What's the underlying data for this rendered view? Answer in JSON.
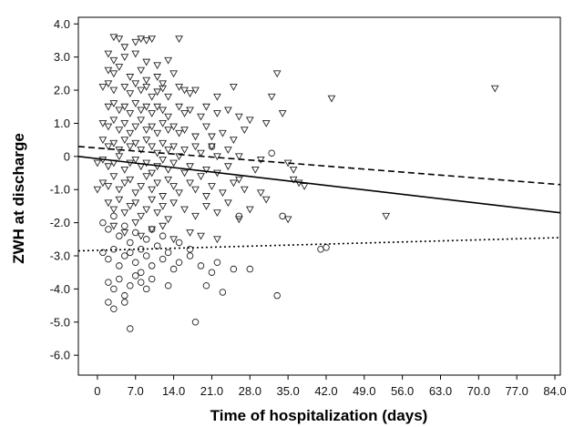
{
  "chart_data": {
    "type": "scatter",
    "title": "",
    "xlabel": "Time of hospitalization (days)",
    "ylabel": "ZWH at discharge",
    "xlim": [
      -3.5,
      85
    ],
    "ylim": [
      -6.6,
      4.2
    ],
    "x_ticks": [
      "0",
      "7.0",
      "14.0",
      "21.0",
      "28.0",
      "35.0",
      "42.0",
      "49.0",
      "56.0",
      "63.0",
      "70.0",
      "77.0",
      "84.0"
    ],
    "y_ticks": [
      "4.0",
      "3.0",
      "2.0",
      "1.0",
      "0",
      "-1.0",
      "-2.0",
      "-3.0",
      "-4.0",
      "-5.0",
      "-6.0"
    ],
    "grid": false,
    "legend": "none",
    "series": [
      {
        "marker": "triangle-down",
        "points": [
          [
            3,
            3.6
          ],
          [
            4,
            3.55
          ],
          [
            5,
            3.3
          ],
          [
            7,
            3.45
          ],
          [
            8,
            3.55
          ],
          [
            9,
            3.5
          ],
          [
            10,
            3.55
          ],
          [
            15,
            3.55
          ],
          [
            2,
            3.1
          ],
          [
            3,
            2.9
          ],
          [
            5,
            3.0
          ],
          [
            7,
            3.1
          ],
          [
            9,
            2.85
          ],
          [
            11,
            2.75
          ],
          [
            13,
            2.9
          ],
          [
            33,
            2.5
          ],
          [
            73,
            2.05
          ],
          [
            2,
            2.6
          ],
          [
            3,
            2.5
          ],
          [
            4,
            2.7
          ],
          [
            6,
            2.4
          ],
          [
            8,
            2.6
          ],
          [
            9,
            2.3
          ],
          [
            11,
            2.4
          ],
          [
            12,
            2.2
          ],
          [
            14,
            2.5
          ],
          [
            1,
            2.1
          ],
          [
            2,
            2.2
          ],
          [
            3,
            2.0
          ],
          [
            5,
            2.1
          ],
          [
            6,
            1.9
          ],
          [
            7,
            2.2
          ],
          [
            8,
            2.0
          ],
          [
            9,
            2.1
          ],
          [
            10,
            1.8
          ],
          [
            11,
            1.95
          ],
          [
            12,
            2.05
          ],
          [
            13,
            1.8
          ],
          [
            15,
            2.1
          ],
          [
            16,
            2.0
          ],
          [
            17,
            1.9
          ],
          [
            18,
            2.0
          ],
          [
            22,
            1.8
          ],
          [
            25,
            2.1
          ],
          [
            32,
            1.8
          ],
          [
            43,
            1.75
          ],
          [
            2,
            1.5
          ],
          [
            3,
            1.6
          ],
          [
            4,
            1.4
          ],
          [
            5,
            1.5
          ],
          [
            6,
            1.3
          ],
          [
            7,
            1.6
          ],
          [
            8,
            1.4
          ],
          [
            9,
            1.5
          ],
          [
            10,
            1.3
          ],
          [
            11,
            1.5
          ],
          [
            12,
            1.4
          ],
          [
            13,
            1.2
          ],
          [
            15,
            1.5
          ],
          [
            16,
            1.3
          ],
          [
            17,
            1.4
          ],
          [
            19,
            1.2
          ],
          [
            20,
            1.5
          ],
          [
            22,
            1.3
          ],
          [
            24,
            1.4
          ],
          [
            26,
            1.2
          ],
          [
            28,
            1.1
          ],
          [
            31,
            1.0
          ],
          [
            34,
            1.3
          ],
          [
            1,
            1.0
          ],
          [
            2,
            0.9
          ],
          [
            3,
            1.1
          ],
          [
            4,
            0.8
          ],
          [
            5,
            1.0
          ],
          [
            6,
            0.7
          ],
          [
            7,
            0.9
          ],
          [
            8,
            1.1
          ],
          [
            9,
            0.8
          ],
          [
            10,
            0.9
          ],
          [
            11,
            0.7
          ],
          [
            12,
            1.0
          ],
          [
            13,
            0.8
          ],
          [
            14,
            0.9
          ],
          [
            15,
            0.7
          ],
          [
            16,
            0.8
          ],
          [
            18,
            0.6
          ],
          [
            20,
            0.9
          ],
          [
            21,
            0.6
          ],
          [
            23,
            0.7
          ],
          [
            25,
            0.5
          ],
          [
            27,
            0.8
          ],
          [
            1,
            0.5
          ],
          [
            2,
            0.3
          ],
          [
            3,
            0.4
          ],
          [
            4,
            0.2
          ],
          [
            5,
            0.5
          ],
          [
            6,
            0.3
          ],
          [
            7,
            0.4
          ],
          [
            8,
            0.2
          ],
          [
            9,
            0.5
          ],
          [
            10,
            0.3
          ],
          [
            11,
            0.1
          ],
          [
            12,
            0.4
          ],
          [
            13,
            0.2
          ],
          [
            14,
            0.3
          ],
          [
            15,
            0.0
          ],
          [
            16,
            0.2
          ],
          [
            18,
            0.3
          ],
          [
            19,
            0.1
          ],
          [
            21,
            0.3
          ],
          [
            22,
            0.0
          ],
          [
            24,
            0.2
          ],
          [
            26,
            0.0
          ],
          [
            30,
            -0.1
          ],
          [
            0,
            -0.2
          ],
          [
            1,
            -0.1
          ],
          [
            2,
            -0.3
          ],
          [
            3,
            -0.2
          ],
          [
            4,
            0.0
          ],
          [
            5,
            -0.4
          ],
          [
            6,
            -0.2
          ],
          [
            7,
            -0.1
          ],
          [
            8,
            -0.3
          ],
          [
            9,
            -0.2
          ],
          [
            10,
            -0.5
          ],
          [
            11,
            -0.3
          ],
          [
            12,
            -0.1
          ],
          [
            13,
            -0.4
          ],
          [
            14,
            -0.2
          ],
          [
            16,
            -0.5
          ],
          [
            17,
            -0.3
          ],
          [
            19,
            -0.6
          ],
          [
            20,
            -0.4
          ],
          [
            22,
            -0.5
          ],
          [
            24,
            -0.3
          ],
          [
            26,
            -0.7
          ],
          [
            29,
            -0.4
          ],
          [
            35,
            -0.2
          ],
          [
            36,
            -0.4
          ],
          [
            0,
            -1.0
          ],
          [
            1,
            -0.8
          ],
          [
            2,
            -0.9
          ],
          [
            3,
            -0.6
          ],
          [
            4,
            -1.0
          ],
          [
            5,
            -0.8
          ],
          [
            6,
            -0.7
          ],
          [
            7,
            -1.1
          ],
          [
            8,
            -0.9
          ],
          [
            9,
            -0.6
          ],
          [
            10,
            -1.0
          ],
          [
            11,
            -0.8
          ],
          [
            12,
            -1.2
          ],
          [
            13,
            -0.7
          ],
          [
            14,
            -0.9
          ],
          [
            15,
            -1.1
          ],
          [
            17,
            -0.8
          ],
          [
            18,
            -1.0
          ],
          [
            20,
            -1.2
          ],
          [
            21,
            -0.9
          ],
          [
            23,
            -1.1
          ],
          [
            25,
            -0.8
          ],
          [
            27,
            -1.0
          ],
          [
            30,
            -1.1
          ],
          [
            36,
            -0.7
          ],
          [
            37,
            -0.8
          ],
          [
            38,
            -0.9
          ],
          [
            2,
            -1.4
          ],
          [
            3,
            -1.6
          ],
          [
            4,
            -1.3
          ],
          [
            5,
            -1.7
          ],
          [
            6,
            -1.5
          ],
          [
            7,
            -1.4
          ],
          [
            8,
            -1.8
          ],
          [
            9,
            -1.6
          ],
          [
            10,
            -1.3
          ],
          [
            11,
            -1.7
          ],
          [
            12,
            -1.5
          ],
          [
            13,
            -1.9
          ],
          [
            14,
            -1.4
          ],
          [
            16,
            -1.6
          ],
          [
            18,
            -1.8
          ],
          [
            20,
            -1.5
          ],
          [
            22,
            -1.7
          ],
          [
            24,
            -1.4
          ],
          [
            26,
            -1.9
          ],
          [
            28,
            -1.6
          ],
          [
            31,
            -1.3
          ],
          [
            35,
            -1.9
          ],
          [
            53,
            -1.8
          ],
          [
            3,
            -2.1
          ],
          [
            5,
            -2.3
          ],
          [
            7,
            -2.0
          ],
          [
            8,
            -2.4
          ],
          [
            10,
            -2.2
          ],
          [
            12,
            -2.1
          ],
          [
            14,
            -2.5
          ],
          [
            17,
            -2.3
          ],
          [
            19,
            -2.4
          ],
          [
            22,
            -2.5
          ]
        ]
      },
      {
        "marker": "circle",
        "points": [
          [
            1,
            -2.0
          ],
          [
            2,
            -2.2
          ],
          [
            3,
            -1.8
          ],
          [
            4,
            -2.4
          ],
          [
            5,
            -2.1
          ],
          [
            6,
            -2.6
          ],
          [
            7,
            -2.3
          ],
          [
            8,
            -2.8
          ],
          [
            9,
            -2.5
          ],
          [
            10,
            -2.2
          ],
          [
            11,
            -2.7
          ],
          [
            12,
            -2.4
          ],
          [
            13,
            -2.9
          ],
          [
            15,
            -2.6
          ],
          [
            17,
            -2.8
          ],
          [
            21,
            0.3
          ],
          [
            32,
            0.1
          ],
          [
            1,
            -2.9
          ],
          [
            2,
            -3.1
          ],
          [
            3,
            -2.8
          ],
          [
            4,
            -3.3
          ],
          [
            5,
            -3.0
          ],
          [
            6,
            -2.9
          ],
          [
            7,
            -3.2
          ],
          [
            8,
            -3.5
          ],
          [
            9,
            -3.0
          ],
          [
            10,
            -3.3
          ],
          [
            12,
            -3.1
          ],
          [
            14,
            -3.4
          ],
          [
            15,
            -3.2
          ],
          [
            17,
            -3.0
          ],
          [
            19,
            -3.3
          ],
          [
            21,
            -3.5
          ],
          [
            22,
            -3.2
          ],
          [
            25,
            -3.4
          ],
          [
            28,
            -3.4
          ],
          [
            2,
            -3.8
          ],
          [
            3,
            -4.0
          ],
          [
            4,
            -3.7
          ],
          [
            5,
            -4.2
          ],
          [
            6,
            -3.9
          ],
          [
            7,
            -3.6
          ],
          [
            8,
            -3.8
          ],
          [
            9,
            -4.0
          ],
          [
            10,
            -3.7
          ],
          [
            13,
            -3.9
          ],
          [
            20,
            -3.9
          ],
          [
            23,
            -4.1
          ],
          [
            33,
            -4.2
          ],
          [
            2,
            -4.4
          ],
          [
            3,
            -4.6
          ],
          [
            5,
            -4.4
          ],
          [
            6,
            -5.2
          ],
          [
            18,
            -5.0
          ],
          [
            41,
            -2.8
          ],
          [
            42,
            -2.75
          ],
          [
            26,
            -1.8
          ],
          [
            34,
            -1.8
          ]
        ]
      }
    ],
    "fit_lines": [
      {
        "style": "solid",
        "x": [
          -3.5,
          85
        ],
        "y": [
          0.0,
          -1.7
        ]
      },
      {
        "style": "dashed",
        "x": [
          -3.5,
          85
        ],
        "y": [
          0.3,
          -0.85
        ]
      },
      {
        "style": "dotted",
        "x": [
          -3.5,
          85
        ],
        "y": [
          -2.85,
          -2.45
        ]
      }
    ]
  }
}
